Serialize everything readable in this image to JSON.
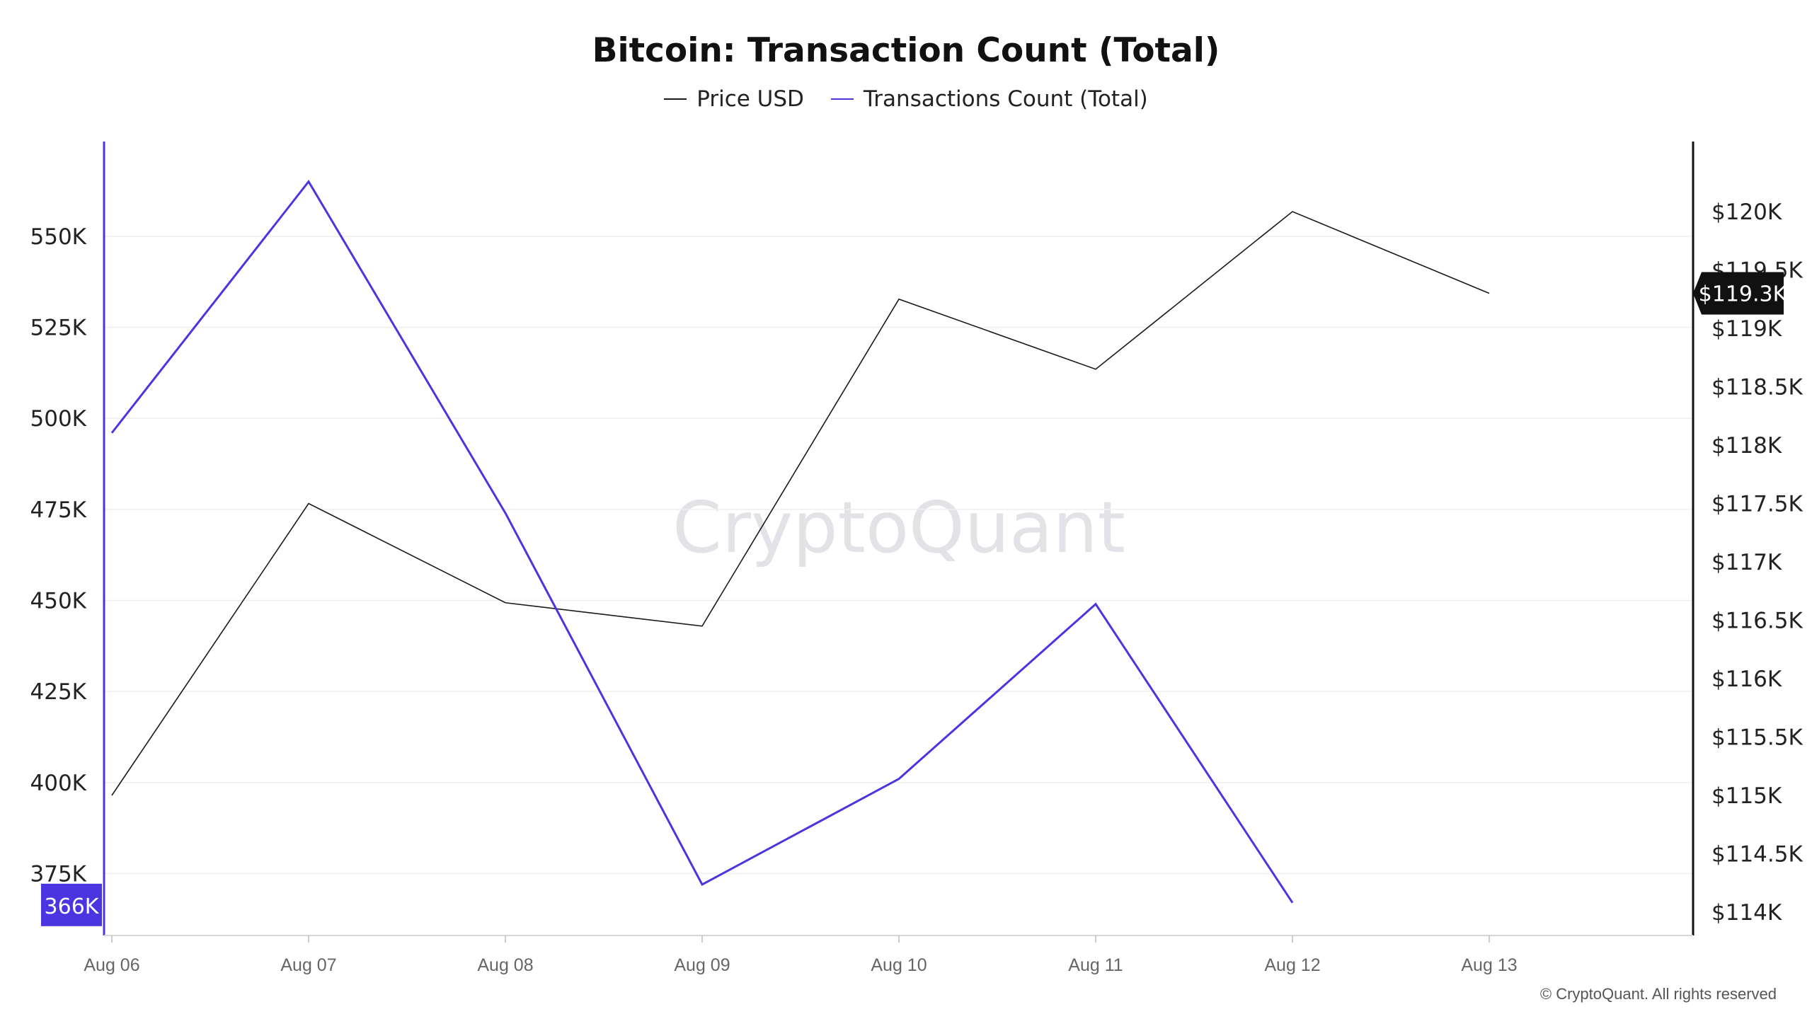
{
  "footer": "© CryptoQuant. All rights reserved",
  "watermark": "CryptoQuant",
  "chart_data": {
    "type": "line",
    "title": "Bitcoin: Transaction Count (Total)",
    "categories": [
      "Aug 06",
      "Aug 07",
      "Aug 08",
      "Aug 09",
      "Aug 10",
      "Aug 11",
      "Aug 12",
      "Aug 13"
    ],
    "series": [
      {
        "name": "Price USD",
        "axis": "right",
        "color": "#1a1a1a",
        "values": [
          115.0,
          117.5,
          116.65,
          116.45,
          119.25,
          118.65,
          120.0,
          119.3
        ]
      },
      {
        "name": "Transactions Count (Total)",
        "axis": "left",
        "color": "#4b35e0",
        "values": [
          496,
          565,
          474,
          372,
          401,
          449,
          367,
          null
        ]
      }
    ],
    "y_left": {
      "ticks": [
        375,
        400,
        425,
        450,
        475,
        500,
        525,
        550
      ],
      "tick_labels": [
        "375K",
        "400K",
        "425K",
        "450K",
        "475K",
        "500K",
        "525K",
        "550K"
      ],
      "range": [
        358,
        576
      ],
      "current_label": "366K",
      "current_value": 366,
      "current_color": "#4b35e0"
    },
    "y_right": {
      "ticks": [
        114,
        114.5,
        115,
        115.5,
        116,
        116.5,
        117,
        117.5,
        118,
        118.5,
        119,
        119.5,
        120
      ],
      "tick_labels": [
        "$114K",
        "$114.5K",
        "$115K",
        "$115.5K",
        "$116K",
        "$116.5K",
        "$117K",
        "$117.5K",
        "$118K",
        "$118.5K",
        "$119K",
        "$119.5K",
        "$120K"
      ],
      "range": [
        113.8,
        120.6
      ],
      "current_label": "$119.3K",
      "current_value": 119.3,
      "current_color": "#111111"
    },
    "grid": true,
    "legend_position": "top-center"
  }
}
